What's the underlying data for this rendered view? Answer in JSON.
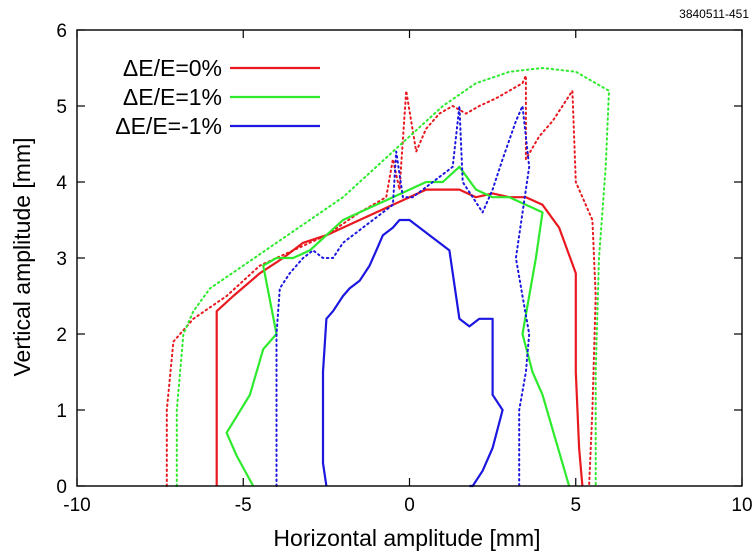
{
  "figure_id": "3840511-451",
  "chart_data": {
    "type": "line",
    "xlabel": "Horizontal amplitude [mm]",
    "ylabel": "Vertical amplitude [mm]",
    "xlim": [
      -10,
      10
    ],
    "ylim": [
      0,
      6
    ],
    "xticks": [
      -10,
      -5,
      0,
      5,
      10
    ],
    "yticks": [
      0,
      1,
      2,
      3,
      4,
      5,
      6
    ],
    "grid": false,
    "legend_position": "top-left",
    "series": [
      {
        "name": "ΔE/E=0%",
        "color": "#e8191f",
        "style": "solid",
        "x": [
          -5.8,
          -5.8,
          -5.8,
          -5.3,
          -4.5,
          -3.8,
          -3.2,
          -2.5,
          -2.0,
          -1.5,
          -1.0,
          -0.5,
          0.0,
          0.5,
          1.0,
          1.5,
          2.0,
          2.5,
          3.0,
          3.5,
          4.0,
          4.5,
          5.0,
          5.0,
          5.1,
          5.2
        ],
        "y": [
          0.0,
          1.2,
          2.3,
          2.5,
          2.8,
          3.0,
          3.2,
          3.3,
          3.4,
          3.5,
          3.6,
          3.7,
          3.8,
          3.9,
          3.9,
          3.9,
          3.8,
          3.85,
          3.8,
          3.8,
          3.7,
          3.4,
          2.8,
          1.5,
          0.5,
          0.0
        ]
      },
      {
        "name": "ΔE/E=0%",
        "color": "#e8191f",
        "style": "dotted",
        "x": [
          -7.3,
          -7.3,
          -7.1,
          -6.5,
          -5.5,
          -4.5,
          -3.5,
          -2.5,
          -1.5,
          -0.7,
          -0.5,
          -0.3,
          -0.1,
          0.2,
          0.5,
          0.9,
          1.3,
          1.7,
          2.1,
          2.6,
          3.0,
          3.4,
          3.5,
          3.5,
          3.9,
          4.3,
          4.6,
          4.9,
          5.0,
          5.5,
          5.6,
          5.5,
          5.4
        ],
        "y": [
          0.0,
          1.0,
          1.9,
          2.2,
          2.5,
          2.9,
          3.1,
          3.3,
          3.6,
          3.8,
          4.3,
          3.9,
          5.2,
          4.4,
          4.7,
          4.9,
          5.0,
          4.9,
          5.0,
          5.1,
          5.2,
          5.3,
          5.4,
          4.3,
          4.6,
          4.8,
          5.0,
          5.2,
          4.0,
          3.5,
          2.5,
          1.0,
          0.0
        ]
      },
      {
        "name": "ΔE/E=1%",
        "color": "#2dea2d",
        "style": "solid",
        "x": [
          -4.7,
          -5.2,
          -5.5,
          -4.8,
          -4.4,
          -4.0,
          -4.4,
          -4.0,
          -3.5,
          -3.0,
          -2.5,
          -2.0,
          -1.5,
          -1.0,
          -0.5,
          0.0,
          0.5,
          1.0,
          1.5,
          2.0,
          2.5,
          3.0,
          3.5,
          4.0,
          3.8,
          3.6,
          3.4,
          3.7,
          4.0,
          4.4,
          4.8
        ],
        "y": [
          0.0,
          0.4,
          0.7,
          1.2,
          1.8,
          2.0,
          2.9,
          3.0,
          3.0,
          3.1,
          3.3,
          3.5,
          3.6,
          3.7,
          3.8,
          3.9,
          4.0,
          4.0,
          4.2,
          3.9,
          3.8,
          3.8,
          3.7,
          3.6,
          3.0,
          2.5,
          2.0,
          1.5,
          1.2,
          0.6,
          0.0
        ]
      },
      {
        "name": "ΔE/E=1%",
        "color": "#2dea2d",
        "style": "dotted",
        "x": [
          -7.0,
          -7.0,
          -6.8,
          -6.5,
          -6.0,
          -5.0,
          -4.0,
          -3.0,
          -2.0,
          -1.0,
          0.0,
          1.0,
          2.0,
          3.0,
          4.0,
          5.0,
          6.0,
          5.9,
          5.7,
          5.6,
          5.6
        ],
        "y": [
          0.0,
          1.0,
          2.0,
          2.3,
          2.6,
          2.9,
          3.2,
          3.5,
          3.8,
          4.2,
          4.6,
          5.0,
          5.3,
          5.45,
          5.5,
          5.45,
          5.2,
          4.2,
          3.0,
          1.5,
          0.0
        ]
      },
      {
        "name": "ΔE/E=-1%",
        "color": "#1c17e0",
        "style": "solid",
        "x": [
          -2.5,
          -2.6,
          -2.6,
          -2.5,
          -2.3,
          -2.0,
          -1.8,
          -1.5,
          -1.2,
          -1.0,
          -0.8,
          -0.5,
          -0.3,
          0.0,
          0.3,
          0.6,
          0.9,
          1.2,
          1.5,
          1.8,
          2.1,
          2.5,
          2.5,
          2.8,
          2.5,
          2.2,
          1.9,
          1.8
        ],
        "y": [
          0.0,
          0.3,
          1.5,
          2.2,
          2.3,
          2.5,
          2.6,
          2.7,
          2.9,
          3.1,
          3.3,
          3.4,
          3.5,
          3.5,
          3.4,
          3.3,
          3.2,
          3.1,
          2.2,
          2.1,
          2.2,
          2.2,
          1.2,
          1.0,
          0.5,
          0.2,
          0.0,
          0.0
        ]
      },
      {
        "name": "ΔE/E=-1%",
        "color": "#1c17e0",
        "style": "dotted",
        "x": [
          -4.0,
          -4.0,
          -4.0,
          -3.9,
          -3.6,
          -3.2,
          -2.9,
          -2.6,
          -2.3,
          -2.0,
          -1.7,
          -1.4,
          -1.1,
          -0.8,
          -0.5,
          -0.4,
          -0.2,
          0.1,
          0.4,
          0.7,
          1.0,
          1.3,
          1.5,
          1.6,
          1.9,
          2.2,
          2.5,
          2.8,
          3.2,
          3.4,
          3.6,
          3.2,
          3.4,
          3.6,
          3.5,
          3.3,
          3.3
        ],
        "y": [
          0.0,
          1.0,
          2.0,
          2.6,
          2.8,
          3.0,
          3.1,
          3.0,
          3.0,
          3.2,
          3.3,
          3.4,
          3.5,
          3.6,
          3.7,
          4.4,
          3.8,
          3.8,
          3.9,
          4.0,
          4.1,
          4.2,
          5.0,
          4.0,
          3.8,
          3.6,
          3.9,
          4.3,
          4.8,
          5.0,
          4.2,
          3.0,
          2.5,
          2.0,
          1.5,
          1.0,
          0.0
        ]
      }
    ],
    "legend": [
      {
        "label": "ΔE/E=0%",
        "color": "#e8191f"
      },
      {
        "label": "ΔE/E=1%",
        "color": "#2dea2d"
      },
      {
        "label": "ΔE/E=-1%",
        "color": "#1c17e0"
      }
    ]
  }
}
